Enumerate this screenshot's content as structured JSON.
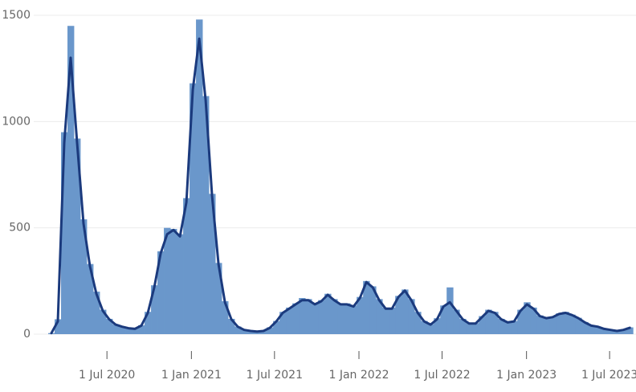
{
  "chart_data": {
    "type": "bar",
    "x": [
      "2020-03-02",
      "2020-03-16",
      "2020-03-30",
      "2020-04-13",
      "2020-04-27",
      "2020-05-11",
      "2020-05-25",
      "2020-06-08",
      "2020-06-22",
      "2020-07-06",
      "2020-07-20",
      "2020-08-03",
      "2020-08-17",
      "2020-08-31",
      "2020-09-14",
      "2020-09-28",
      "2020-10-12",
      "2020-10-26",
      "2020-11-09",
      "2020-11-23",
      "2020-12-07",
      "2020-12-21",
      "2021-01-04",
      "2021-01-18",
      "2021-02-01",
      "2021-02-15",
      "2021-03-01",
      "2021-03-15",
      "2021-03-29",
      "2021-04-12",
      "2021-04-26",
      "2021-05-10",
      "2021-05-24",
      "2021-06-07",
      "2021-06-21",
      "2021-07-05",
      "2021-07-19",
      "2021-08-02",
      "2021-08-16",
      "2021-08-30",
      "2021-09-13",
      "2021-09-27",
      "2021-10-11",
      "2021-10-25",
      "2021-11-08",
      "2021-11-22",
      "2021-12-06",
      "2021-12-20",
      "2022-01-03",
      "2022-01-17",
      "2022-01-31",
      "2022-02-14",
      "2022-02-28",
      "2022-03-14",
      "2022-03-28",
      "2022-04-11",
      "2022-04-25",
      "2022-05-09",
      "2022-05-23",
      "2022-06-06",
      "2022-06-20",
      "2022-07-04",
      "2022-07-18",
      "2022-08-01",
      "2022-08-15",
      "2022-08-29",
      "2022-09-12",
      "2022-09-26",
      "2022-10-10",
      "2022-10-24",
      "2022-11-07",
      "2022-11-21",
      "2022-12-05",
      "2022-12-19",
      "2023-01-02",
      "2023-01-16",
      "2023-01-30",
      "2023-02-13",
      "2023-02-27",
      "2023-03-13",
      "2023-03-27",
      "2023-04-10",
      "2023-04-24",
      "2023-05-08",
      "2023-05-22",
      "2023-06-05",
      "2023-06-19",
      "2023-07-03",
      "2023-07-17",
      "2023-07-31",
      "2023-08-14"
    ],
    "series": [
      {
        "type": "bar",
        "color": "#6a97cb",
        "values": [
          5,
          70,
          950,
          1450,
          920,
          540,
          330,
          200,
          115,
          72,
          46,
          36,
          29,
          26,
          42,
          105,
          230,
          390,
          500,
          495,
          470,
          640,
          1180,
          1480,
          1120,
          660,
          335,
          155,
          72,
          36,
          21,
          16,
          13,
          16,
          32,
          62,
          105,
          125,
          145,
          170,
          165,
          145,
          160,
          190,
          165,
          145,
          145,
          135,
          175,
          250,
          225,
          165,
          125,
          125,
          180,
          210,
          165,
          105,
          62,
          47,
          75,
          135,
          220,
          115,
          72,
          52,
          52,
          85,
          115,
          105,
          72,
          57,
          62,
          115,
          150,
          125,
          88,
          78,
          82,
          98,
          105,
          92,
          77,
          57,
          42,
          36,
          26,
          21,
          16,
          22,
          32
        ]
      },
      {
        "type": "line",
        "color": "#1b3a7d",
        "values": [
          5,
          60,
          900,
          1300,
          900,
          520,
          320,
          190,
          110,
          70,
          45,
          35,
          28,
          25,
          40,
          100,
          220,
          380,
          470,
          490,
          460,
          620,
          1150,
          1390,
          1100,
          650,
          330,
          150,
          70,
          35,
          20,
          15,
          12,
          15,
          30,
          60,
          100,
          120,
          140,
          160,
          160,
          140,
          155,
          185,
          160,
          140,
          140,
          130,
          170,
          245,
          220,
          160,
          120,
          120,
          175,
          205,
          160,
          100,
          60,
          45,
          70,
          130,
          150,
          110,
          70,
          50,
          50,
          80,
          110,
          100,
          70,
          55,
          60,
          110,
          140,
          120,
          85,
          75,
          80,
          95,
          100,
          90,
          75,
          55,
          40,
          35,
          25,
          20,
          15,
          20,
          30
        ]
      }
    ],
    "xlim": [
      "2020-02-03",
      "2023-08-24"
    ],
    "xticks": [
      {
        "value": "2020-07-01",
        "label": "1 Jul 2020"
      },
      {
        "value": "2021-01-01",
        "label": "1 Jan 2021"
      },
      {
        "value": "2021-07-01",
        "label": "1 Jul 2021"
      },
      {
        "value": "2022-01-01",
        "label": "1 Jan 2022"
      },
      {
        "value": "2022-07-01",
        "label": "1 Jul 2022"
      },
      {
        "value": "2023-01-01",
        "label": "1 Jan 2023"
      },
      {
        "value": "2023-07-01",
        "label": "1 Jul 2023"
      }
    ],
    "ylim": [
      0,
      1500
    ],
    "yticks": [
      0,
      500,
      1000,
      1500
    ],
    "grid": true
  }
}
